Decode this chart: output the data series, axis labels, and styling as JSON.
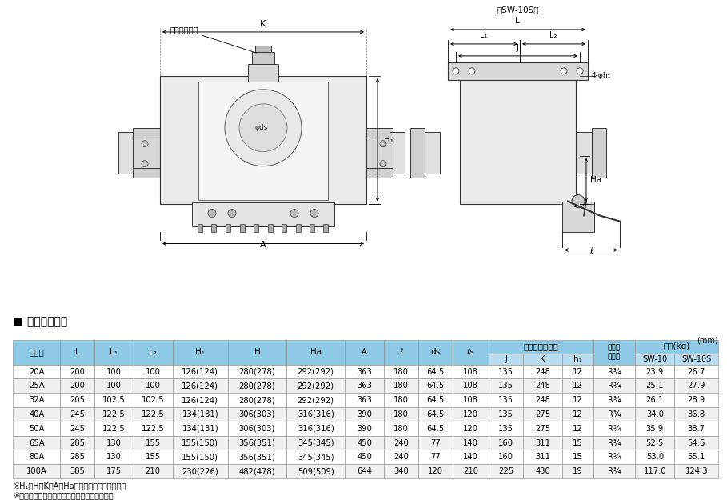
{
  "title_section": "■ 寸法及び質量",
  "unit_label": "(mm)",
  "col_headers": [
    "呼び径",
    "L",
    "L₁",
    "L₂",
    "H₁",
    "H",
    "Ha",
    "A",
    "ℓ",
    "ds",
    "ℓs",
    "J",
    "K",
    "h₁",
    "ドレン\nプラグ",
    "SW-10",
    "SW-10S"
  ],
  "header_span1": [
    "呼び径",
    "L",
    "L₁",
    "L₂",
    "H₁",
    "H",
    "Ha",
    "A",
    "ℓ",
    "ds",
    "ℓs"
  ],
  "header_anchor_top": "アンカーベース",
  "header_anchor_sub": [
    "J",
    "K",
    "h₁"
  ],
  "header_drain": "ドレン\nプラグ",
  "header_quality_top": "質量(kg)",
  "header_quality_sub": [
    "SW-10",
    "SW-10S"
  ],
  "rows": [
    [
      "20A",
      "200",
      "100",
      "100",
      "126(124)",
      "280(278)",
      "292(292)",
      "363",
      "180",
      "64.5",
      "108",
      "135",
      "248",
      "12",
      "R¾",
      "23.9",
      "26.7"
    ],
    [
      "25A",
      "200",
      "100",
      "100",
      "126(124)",
      "280(278)",
      "292(292)",
      "363",
      "180",
      "64.5",
      "108",
      "135",
      "248",
      "12",
      "R¾",
      "25.1",
      "27.9"
    ],
    [
      "32A",
      "205",
      "102.5",
      "102.5",
      "126(124)",
      "280(278)",
      "292(292)",
      "363",
      "180",
      "64.5",
      "108",
      "135",
      "248",
      "12",
      "R¾",
      "26.1",
      "28.9"
    ],
    [
      "40A",
      "245",
      "122.5",
      "122.5",
      "134(131)",
      "306(303)",
      "316(316)",
      "390",
      "180",
      "64.5",
      "120",
      "135",
      "275",
      "12",
      "R¾",
      "34.0",
      "36.8"
    ],
    [
      "50A",
      "245",
      "122.5",
      "122.5",
      "134(131)",
      "306(303)",
      "316(316)",
      "390",
      "180",
      "64.5",
      "120",
      "135",
      "275",
      "12",
      "R¾",
      "35.9",
      "38.7"
    ],
    [
      "65A",
      "285",
      "130",
      "155",
      "155(150)",
      "356(351)",
      "345(345)",
      "450",
      "240",
      "77",
      "140",
      "160",
      "311",
      "15",
      "R¾",
      "52.5",
      "54.6"
    ],
    [
      "80A",
      "285",
      "130",
      "155",
      "155(150)",
      "356(351)",
      "345(345)",
      "450",
      "240",
      "77",
      "140",
      "160",
      "311",
      "15",
      "R¾",
      "53.0",
      "55.1"
    ],
    [
      "100A",
      "385",
      "175",
      "210",
      "230(226)",
      "482(478)",
      "509(509)",
      "644",
      "340",
      "120",
      "210",
      "225",
      "430",
      "19",
      "R¾",
      "117.0",
      "124.3"
    ]
  ],
  "footnotes": [
    "※H₁、H、K、A、Haは参考数値となります。",
    "※ステンレス製は（　）内の寸法となります。"
  ],
  "header_bg": "#8ecae6",
  "subheader_bg": "#b8ddf0",
  "row_bg_white": "#ffffff",
  "row_bg_gray": "#f0f0f0",
  "border_color": "#888888",
  "text_color": "#000000",
  "col_widths": [
    5.8,
    4.2,
    4.8,
    4.8,
    6.8,
    7.2,
    7.2,
    4.8,
    4.2,
    4.2,
    4.5,
    4.2,
    4.8,
    3.8,
    5.2,
    4.8,
    5.4
  ]
}
